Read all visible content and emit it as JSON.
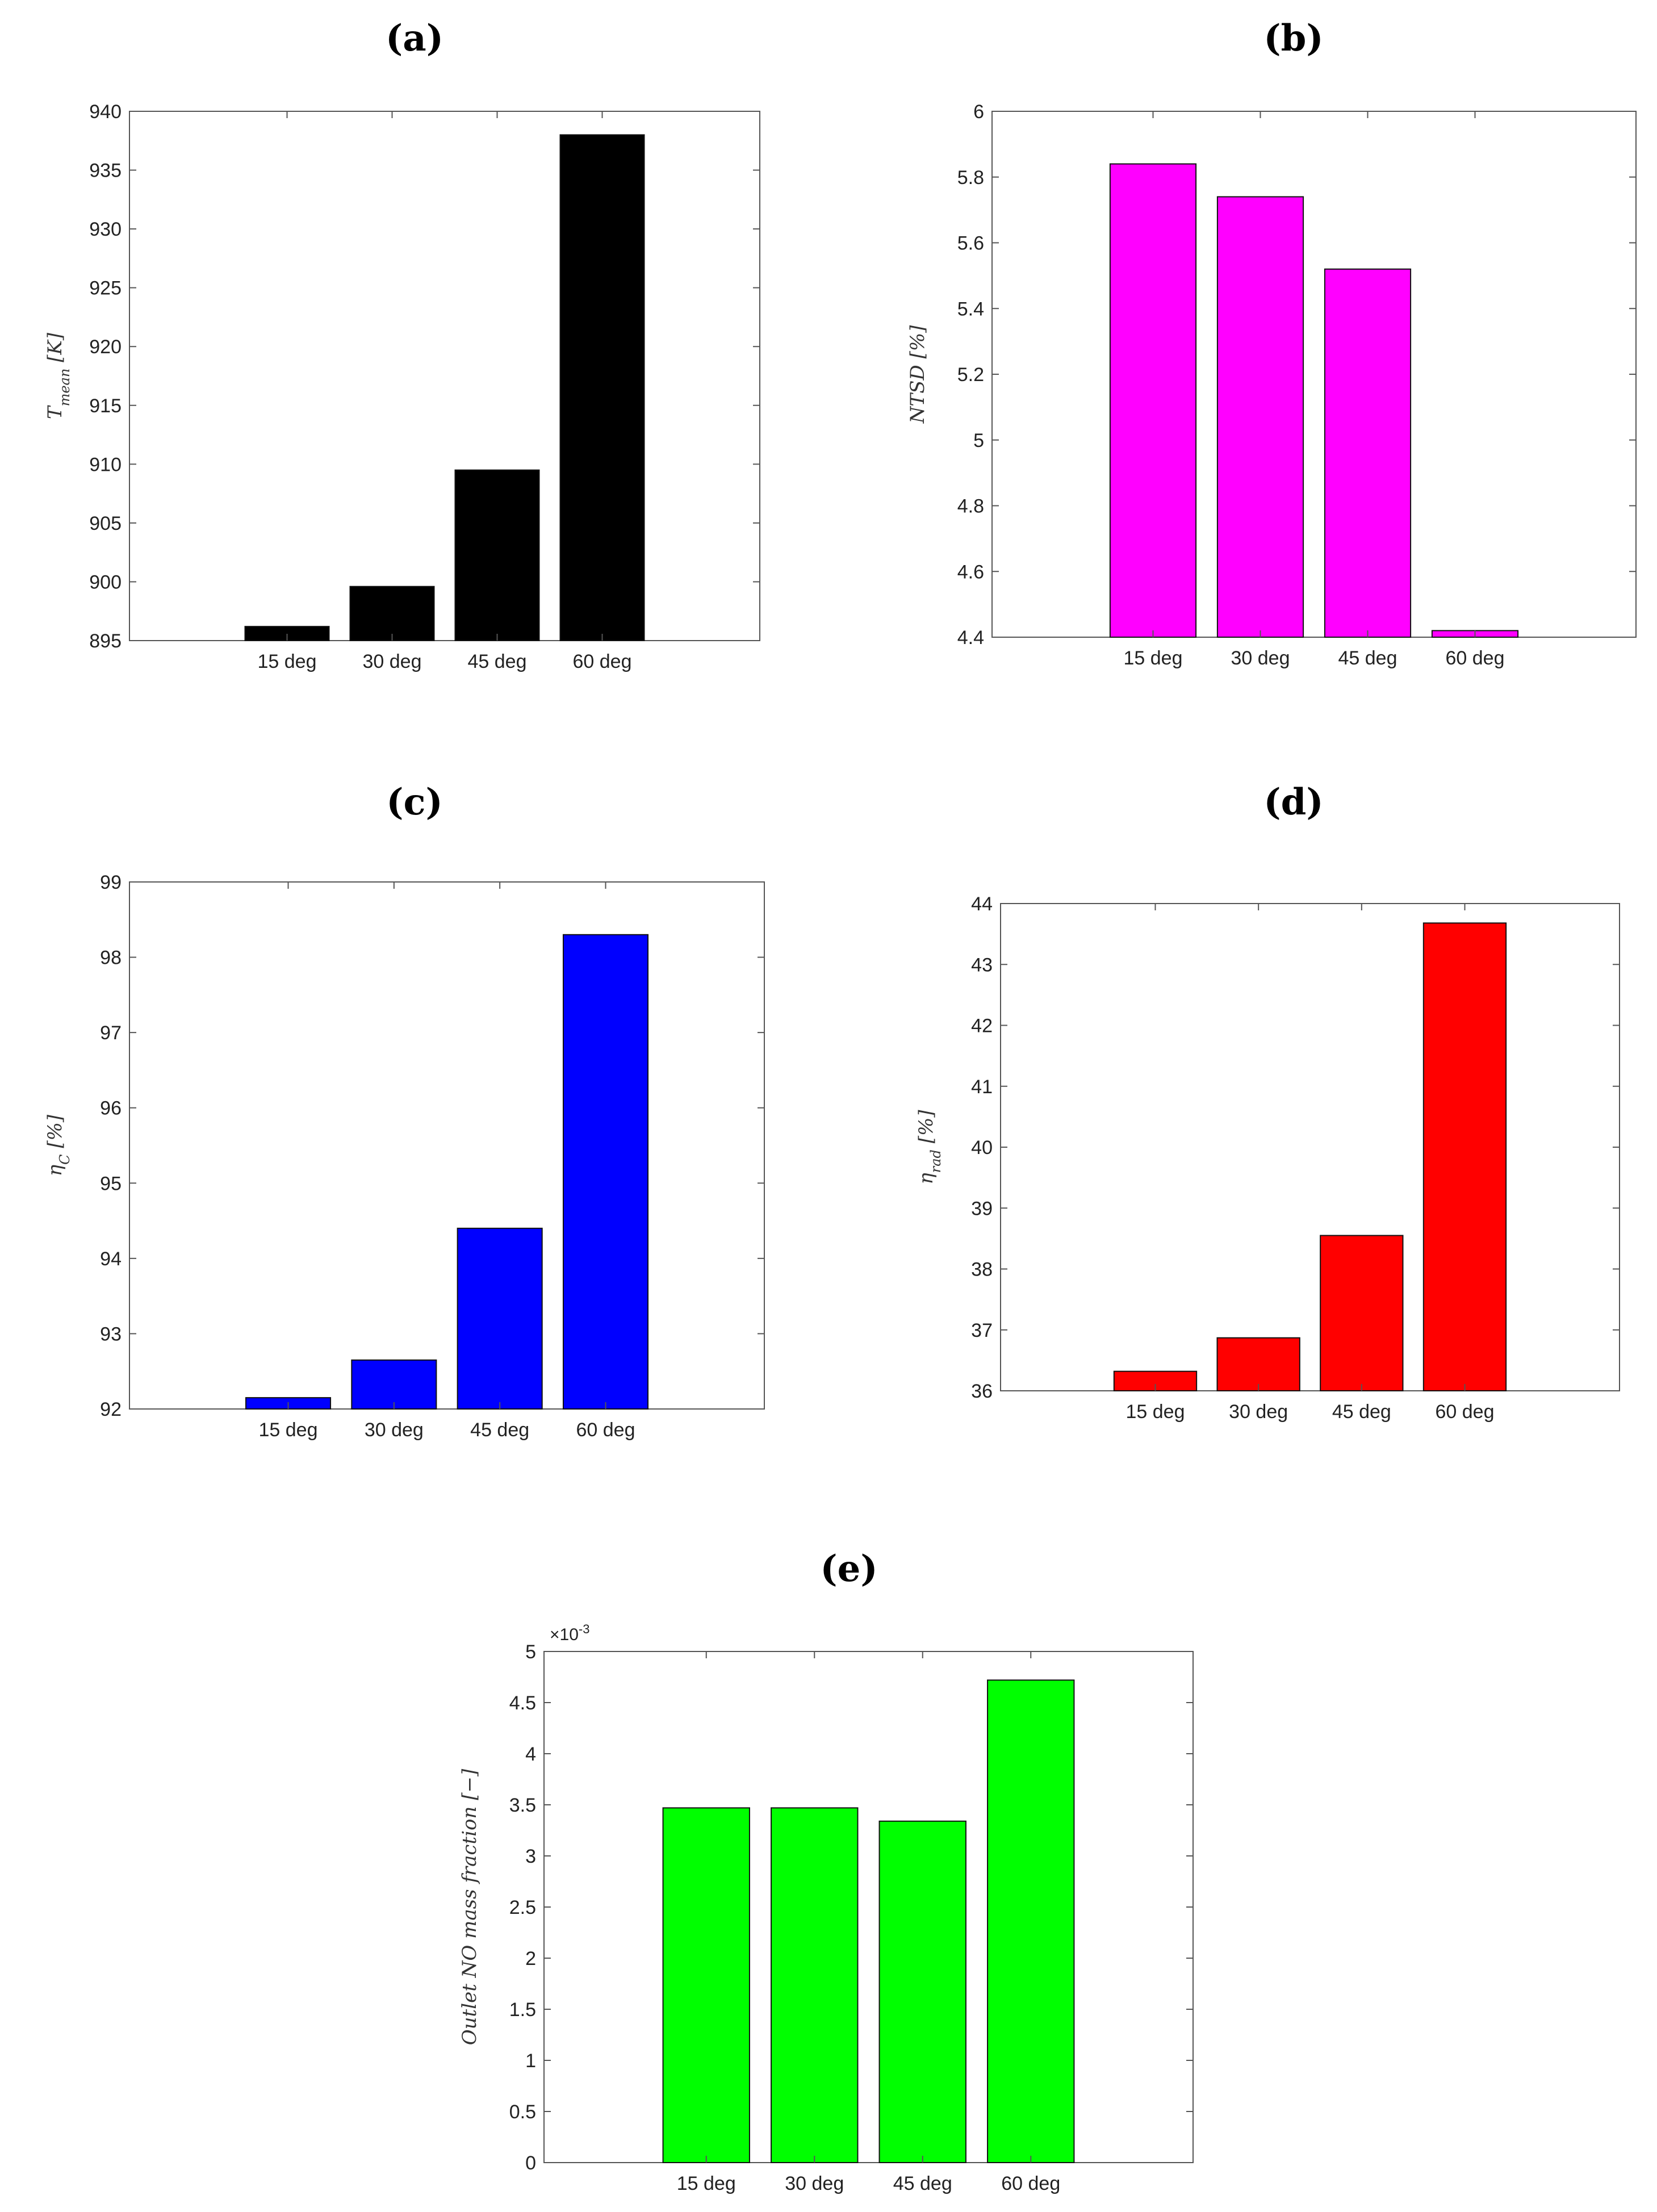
{
  "chart_data": [
    {
      "id": "a",
      "panel_label": "(a)",
      "type": "bar",
      "categories": [
        "15 deg",
        "30 deg",
        "45 deg",
        "60 deg"
      ],
      "values": [
        896.2,
        899.6,
        909.5,
        938.0
      ],
      "ylabel": "T_mean [K]",
      "ylim": [
        895,
        940
      ],
      "yticks": [
        895,
        900,
        905,
        910,
        915,
        920,
        925,
        930,
        935,
        940
      ],
      "ytick_labels": [
        "895",
        "900",
        "905",
        "910",
        "915",
        "920",
        "925",
        "930",
        "935",
        "940"
      ],
      "color": "#000000"
    },
    {
      "id": "b",
      "panel_label": "(b)",
      "type": "bar",
      "categories": [
        "15 deg",
        "30 deg",
        "45 deg",
        "60 deg"
      ],
      "values": [
        5.84,
        5.74,
        5.52,
        4.42
      ],
      "ylabel": "NTSD [%]",
      "ylim": [
        4.4,
        6
      ],
      "yticks": [
        4.4,
        4.6,
        4.8,
        5.0,
        5.2,
        5.4,
        5.6,
        5.8,
        6.0
      ],
      "ytick_labels": [
        "4.4",
        "4.6",
        "4.8",
        "5",
        "5.2",
        "5.4",
        "5.6",
        "5.8",
        "6"
      ],
      "color": "#ff00ff"
    },
    {
      "id": "c",
      "panel_label": "(c)",
      "type": "bar",
      "categories": [
        "15 deg",
        "30 deg",
        "45 deg",
        "60 deg"
      ],
      "values": [
        92.15,
        92.65,
        94.4,
        98.3
      ],
      "ylabel": "η_C [%]",
      "ylim": [
        92,
        99
      ],
      "yticks": [
        92,
        93,
        94,
        95,
        96,
        97,
        98,
        99
      ],
      "ytick_labels": [
        "92",
        "93",
        "94",
        "95",
        "96",
        "97",
        "98",
        "99"
      ],
      "color": "#0000ff"
    },
    {
      "id": "d",
      "panel_label": "(d)",
      "type": "bar",
      "categories": [
        "15 deg",
        "30 deg",
        "45 deg",
        "60 deg"
      ],
      "values": [
        36.32,
        36.87,
        38.55,
        43.68
      ],
      "ylabel": "η_rad [%]",
      "ylim": [
        36,
        44
      ],
      "yticks": [
        36,
        37,
        38,
        39,
        40,
        41,
        42,
        43,
        44
      ],
      "ytick_labels": [
        "36",
        "37",
        "38",
        "39",
        "40",
        "41",
        "42",
        "43",
        "44"
      ],
      "color": "#ff0000"
    },
    {
      "id": "e",
      "panel_label": "(e)",
      "type": "bar",
      "categories": [
        "15 deg",
        "30 deg",
        "45 deg",
        "60 deg"
      ],
      "values": [
        3.47,
        3.47,
        3.34,
        4.72
      ],
      "ylabel": "Outlet NO mass fraction [−]",
      "ylim": [
        0,
        5
      ],
      "yticks": [
        0,
        0.5,
        1,
        1.5,
        2,
        2.5,
        3,
        3.5,
        4,
        4.5,
        5
      ],
      "ytick_labels": [
        "0",
        "0.5",
        "1",
        "1.5",
        "2",
        "2.5",
        "3",
        "3.5",
        "4",
        "4.5",
        "5"
      ],
      "multiplier_label": "×10",
      "multiplier_exponent": "-3",
      "color": "#00ff00"
    }
  ]
}
